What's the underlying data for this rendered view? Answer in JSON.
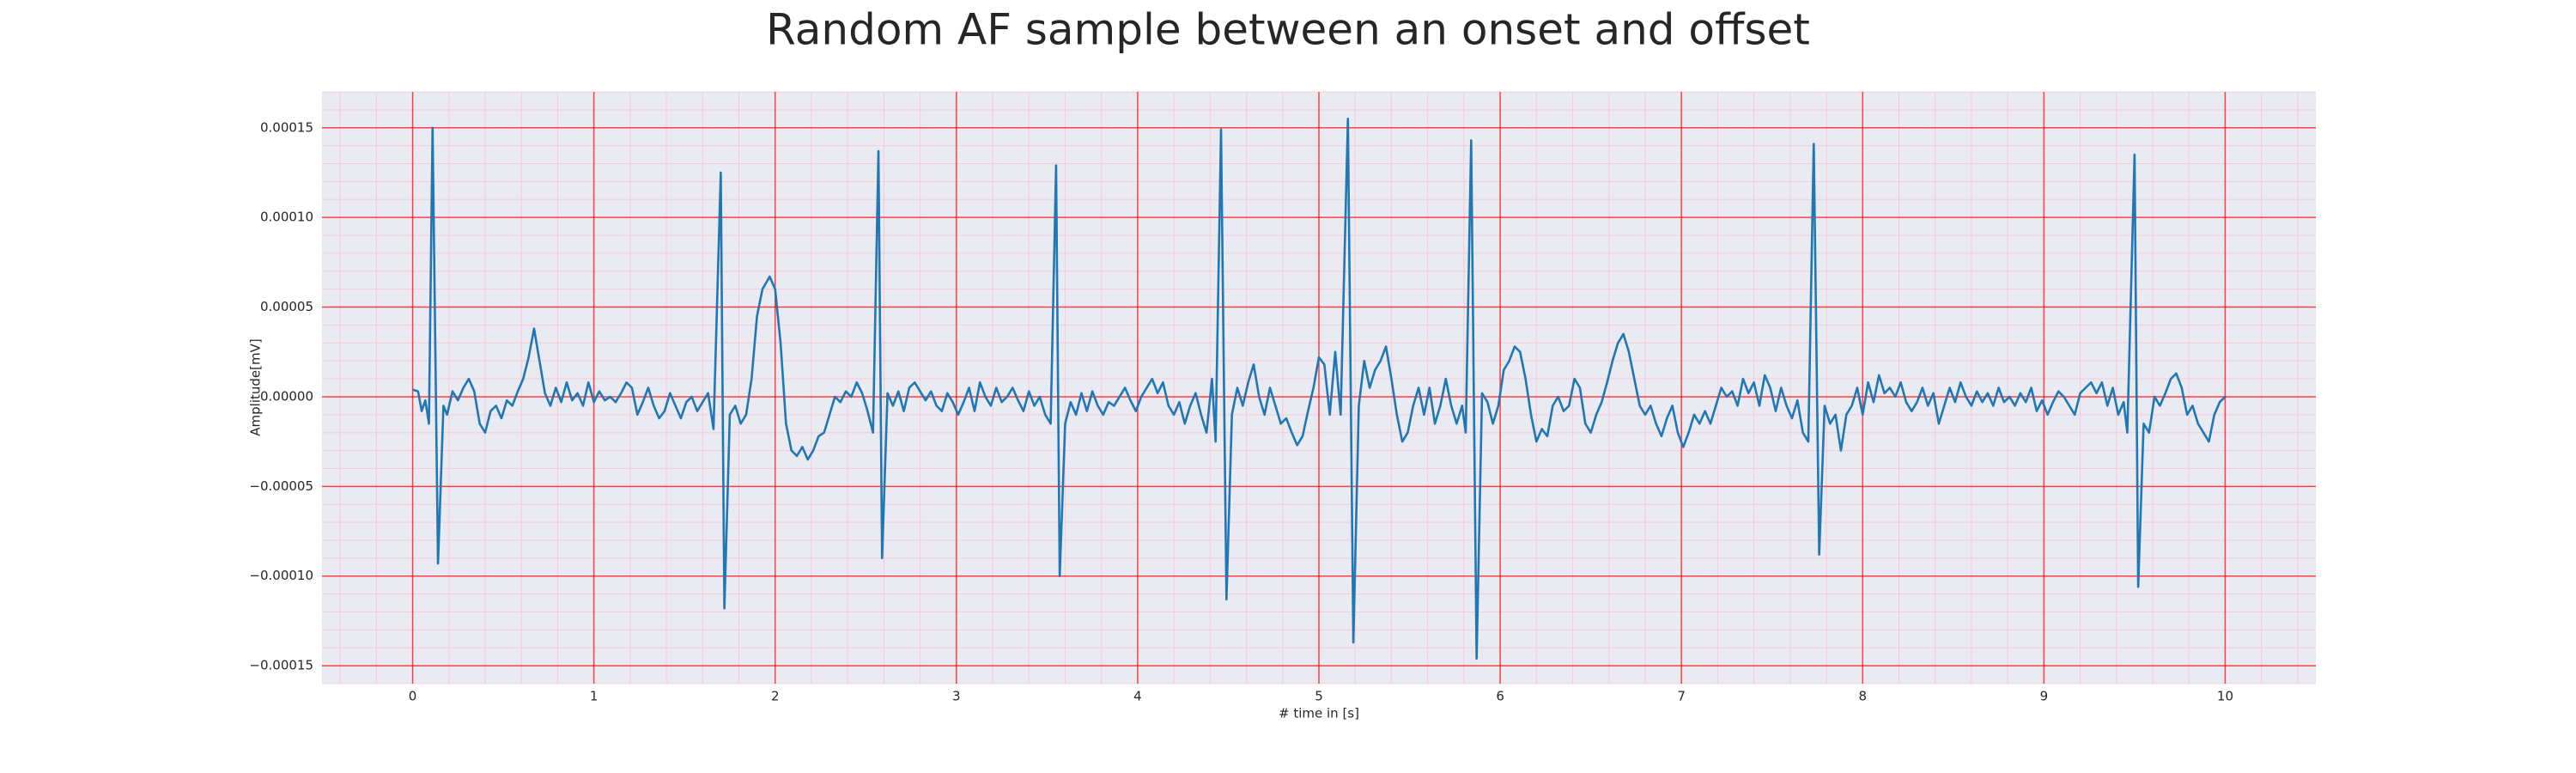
{
  "chart_data": {
    "type": "line",
    "title": "Random AF sample between an onset and offset",
    "x_label": "# time in [s]",
    "y_label": "Amplitude[mV]",
    "color": "#1f77b4",
    "grid": true,
    "grid_color": "#ff0000",
    "minor_grid": true,
    "xlim": [
      -0.5,
      10.5
    ],
    "xticks": [
      0,
      1,
      2,
      3,
      4,
      5,
      6,
      7,
      8,
      9,
      10
    ],
    "ylim": [
      -0.00016,
      0.00017
    ],
    "yticks": [
      {
        "value": -0.00015,
        "label": "−0.00015"
      },
      {
        "value": -0.0001,
        "label": "−0.00010"
      },
      {
        "value": -5e-05,
        "label": "−0.00005"
      },
      {
        "value": 0,
        "label": "0.00000"
      },
      {
        "value": 5e-05,
        "label": "0.00005"
      },
      {
        "value": 0.0001,
        "label": "0.00010"
      },
      {
        "value": 0.00015,
        "label": "0.00015"
      }
    ],
    "x": [
      0.0,
      0.03,
      0.05,
      0.07,
      0.09,
      0.11,
      0.14,
      0.17,
      0.19,
      0.22,
      0.25,
      0.28,
      0.31,
      0.34,
      0.37,
      0.4,
      0.43,
      0.46,
      0.49,
      0.52,
      0.55,
      0.58,
      0.61,
      0.64,
      0.67,
      0.7,
      0.73,
      0.76,
      0.79,
      0.82,
      0.85,
      0.88,
      0.91,
      0.94,
      0.97,
      1.0,
      1.03,
      1.06,
      1.09,
      1.12,
      1.15,
      1.18,
      1.21,
      1.24,
      1.27,
      1.3,
      1.33,
      1.36,
      1.39,
      1.42,
      1.45,
      1.48,
      1.51,
      1.54,
      1.57,
      1.6,
      1.63,
      1.66,
      1.7,
      1.72,
      1.75,
      1.78,
      1.81,
      1.84,
      1.87,
      1.9,
      1.93,
      1.97,
      2.0,
      2.03,
      2.06,
      2.09,
      2.12,
      2.15,
      2.18,
      2.21,
      2.24,
      2.27,
      2.3,
      2.33,
      2.36,
      2.39,
      2.42,
      2.45,
      2.48,
      2.51,
      2.54,
      2.57,
      2.59,
      2.62,
      2.65,
      2.68,
      2.71,
      2.74,
      2.77,
      2.8,
      2.83,
      2.86,
      2.89,
      2.92,
      2.95,
      2.98,
      3.01,
      3.04,
      3.07,
      3.1,
      3.13,
      3.16,
      3.19,
      3.22,
      3.25,
      3.28,
      3.31,
      3.34,
      3.37,
      3.4,
      3.43,
      3.46,
      3.49,
      3.52,
      3.55,
      3.57,
      3.6,
      3.63,
      3.66,
      3.69,
      3.72,
      3.75,
      3.78,
      3.81,
      3.84,
      3.87,
      3.9,
      3.93,
      3.96,
      3.99,
      4.02,
      4.05,
      4.08,
      4.11,
      4.14,
      4.17,
      4.2,
      4.23,
      4.26,
      4.29,
      4.32,
      4.35,
      4.38,
      4.41,
      4.43,
      4.46,
      4.49,
      4.52,
      4.55,
      4.58,
      4.61,
      4.64,
      4.67,
      4.7,
      4.73,
      4.76,
      4.79,
      4.82,
      4.85,
      4.88,
      4.91,
      4.94,
      4.97,
      5.0,
      5.03,
      5.06,
      5.09,
      5.12,
      5.16,
      5.19,
      5.22,
      5.25,
      5.28,
      5.31,
      5.34,
      5.37,
      5.4,
      5.43,
      5.46,
      5.49,
      5.52,
      5.55,
      5.58,
      5.61,
      5.64,
      5.67,
      5.7,
      5.73,
      5.76,
      5.79,
      5.81,
      5.84,
      5.87,
      5.9,
      5.93,
      5.96,
      5.99,
      6.02,
      6.05,
      6.08,
      6.11,
      6.14,
      6.17,
      6.2,
      6.23,
      6.26,
      6.29,
      6.32,
      6.35,
      6.38,
      6.41,
      6.44,
      6.47,
      6.5,
      6.53,
      6.56,
      6.59,
      6.62,
      6.65,
      6.68,
      6.71,
      6.74,
      6.77,
      6.8,
      6.83,
      6.86,
      6.89,
      6.92,
      6.95,
      6.98,
      7.01,
      7.04,
      7.07,
      7.1,
      7.13,
      7.16,
      7.19,
      7.22,
      7.25,
      7.28,
      7.31,
      7.34,
      7.37,
      7.4,
      7.43,
      7.46,
      7.49,
      7.52,
      7.55,
      7.58,
      7.61,
      7.64,
      7.67,
      7.7,
      7.73,
      7.76,
      7.79,
      7.82,
      7.85,
      7.88,
      7.91,
      7.94,
      7.97,
      8.0,
      8.03,
      8.06,
      8.09,
      8.12,
      8.15,
      8.18,
      8.21,
      8.24,
      8.27,
      8.3,
      8.33,
      8.36,
      8.39,
      8.42,
      8.45,
      8.48,
      8.51,
      8.54,
      8.57,
      8.6,
      8.63,
      8.66,
      8.69,
      8.72,
      8.75,
      8.78,
      8.81,
      8.84,
      8.87,
      8.9,
      8.93,
      8.96,
      8.99,
      9.02,
      9.05,
      9.08,
      9.11,
      9.14,
      9.17,
      9.2,
      9.23,
      9.26,
      9.29,
      9.32,
      9.35,
      9.38,
      9.41,
      9.44,
      9.46,
      9.5,
      9.52,
      9.55,
      9.58,
      9.61,
      9.64,
      9.67,
      9.7,
      9.73,
      9.76,
      9.79,
      9.82,
      9.85,
      9.88,
      9.91,
      9.94,
      9.97,
      10.0
    ],
    "values": [
      4e-06,
      3e-06,
      -8e-06,
      -2e-06,
      -1.5e-05,
      0.00015,
      -9.3e-05,
      -5e-06,
      -1e-05,
      3e-06,
      -2e-06,
      5e-06,
      1e-05,
      3e-06,
      -1.5e-05,
      -2e-05,
      -8e-06,
      -5e-06,
      -1.2e-05,
      -2e-06,
      -5e-06,
      3e-06,
      1e-05,
      2.2e-05,
      3.8e-05,
      2e-05,
      2e-06,
      -5e-06,
      5e-06,
      -3e-06,
      8e-06,
      -2e-06,
      2e-06,
      -5e-06,
      8e-06,
      -3e-06,
      3e-06,
      -2e-06,
      0,
      -3e-06,
      2e-06,
      8e-06,
      5e-06,
      -1e-05,
      -3e-06,
      5e-06,
      -5e-06,
      -1.2e-05,
      -8e-06,
      2e-06,
      -5e-06,
      -1.2e-05,
      -3e-06,
      0,
      -8e-06,
      -3e-06,
      2e-06,
      -1.8e-05,
      0.000125,
      -0.000118,
      -1e-05,
      -5e-06,
      -1.5e-05,
      -1e-05,
      1e-05,
      4.5e-05,
      6e-05,
      6.7e-05,
      6e-05,
      3e-05,
      -1.5e-05,
      -3e-05,
      -3.3e-05,
      -2.8e-05,
      -3.5e-05,
      -3e-05,
      -2.2e-05,
      -2e-05,
      -1e-05,
      0,
      -3e-06,
      3e-06,
      0,
      8e-06,
      2e-06,
      -8e-06,
      -2e-05,
      0.000137,
      -9e-05,
      2e-06,
      -5e-06,
      3e-06,
      -8e-06,
      5e-06,
      8e-06,
      3e-06,
      -2e-06,
      3e-06,
      -5e-06,
      -8e-06,
      2e-06,
      -3e-06,
      -1e-05,
      -3e-06,
      5e-06,
      -8e-06,
      8e-06,
      0,
      -5e-06,
      5e-06,
      -3e-06,
      0,
      5e-06,
      -2e-06,
      -8e-06,
      3e-06,
      -5e-06,
      0,
      -1e-05,
      -1.5e-05,
      0.000129,
      -0.0001,
      -1.5e-05,
      -3e-06,
      -1e-05,
      2e-06,
      -8e-06,
      3e-06,
      -5e-06,
      -1e-05,
      -3e-06,
      -5e-06,
      0,
      5e-06,
      -2e-06,
      -8e-06,
      0,
      5e-06,
      1e-05,
      2e-06,
      8e-06,
      -5e-06,
      -1e-05,
      -3e-06,
      -1.5e-05,
      -5e-06,
      2e-06,
      -1e-05,
      -2e-05,
      1e-05,
      -2.5e-05,
      0.000149,
      -0.000113,
      -1e-05,
      5e-06,
      -5e-06,
      8e-06,
      1.8e-05,
      0,
      -1e-05,
      5e-06,
      -5e-06,
      -1.5e-05,
      -1.2e-05,
      -2e-05,
      -2.7e-05,
      -2.2e-05,
      -8e-06,
      5e-06,
      2.2e-05,
      1.8e-05,
      -1e-05,
      2.5e-05,
      -1e-05,
      0.000155,
      -0.000137,
      -5e-06,
      2e-05,
      5e-06,
      1.5e-05,
      2e-05,
      2.8e-05,
      1e-05,
      -1e-05,
      -2.5e-05,
      -2e-05,
      -5e-06,
      5e-06,
      -1e-05,
      5e-06,
      -1.5e-05,
      -5e-06,
      1e-05,
      -5e-06,
      -1.5e-05,
      -5e-06,
      -2e-05,
      0.000143,
      -0.000146,
      2e-06,
      -3e-06,
      -1.5e-05,
      -5e-06,
      1.5e-05,
      2e-05,
      2.8e-05,
      2.5e-05,
      1e-05,
      -1e-05,
      -2.5e-05,
      -1.8e-05,
      -2.2e-05,
      -5e-06,
      0,
      -8e-06,
      -5e-06,
      1e-05,
      5e-06,
      -1.5e-05,
      -2e-05,
      -1e-05,
      -3e-06,
      8e-06,
      2e-05,
      3e-05,
      3.5e-05,
      2.5e-05,
      1e-05,
      -5e-06,
      -1e-05,
      -5e-06,
      -1.5e-05,
      -2.2e-05,
      -1.2e-05,
      -5e-06,
      -2e-05,
      -2.8e-05,
      -2e-05,
      -1e-05,
      -1.5e-05,
      -8e-06,
      -1.5e-05,
      -5e-06,
      5e-06,
      0,
      3e-06,
      -5e-06,
      1e-05,
      2e-06,
      8e-06,
      -5e-06,
      1.2e-05,
      5e-06,
      -8e-06,
      5e-06,
      -5e-06,
      -1.2e-05,
      -2e-06,
      -2e-05,
      -2.5e-05,
      0.000141,
      -8.8e-05,
      -5e-06,
      -1.5e-05,
      -1e-05,
      -3e-05,
      -1e-05,
      -5e-06,
      5e-06,
      -1e-05,
      8e-06,
      -3e-06,
      1.2e-05,
      2e-06,
      5e-06,
      0,
      8e-06,
      -3e-06,
      -8e-06,
      -3e-06,
      5e-06,
      -5e-06,
      2e-06,
      -1.5e-05,
      -5e-06,
      5e-06,
      -3e-06,
      8e-06,
      0,
      -5e-06,
      3e-06,
      -3e-06,
      2e-06,
      -5e-06,
      5e-06,
      -3e-06,
      0,
      -5e-06,
      2e-06,
      -3e-06,
      5e-06,
      -8e-06,
      -2e-06,
      -1e-05,
      -3e-06,
      3e-06,
      0,
      -5e-06,
      -1e-05,
      2e-06,
      5e-06,
      8e-06,
      2e-06,
      8e-06,
      -5e-06,
      5e-06,
      -1e-05,
      -3e-06,
      -2e-05,
      0.000135,
      -0.000106,
      -1.5e-05,
      -2e-05,
      0,
      -5e-06,
      2e-06,
      1e-05,
      1.3e-05,
      5e-06,
      -1e-05,
      -5e-06,
      -1.5e-05,
      -2e-05,
      -2.5e-05,
      -1e-05,
      -3e-06,
      0
    ]
  }
}
